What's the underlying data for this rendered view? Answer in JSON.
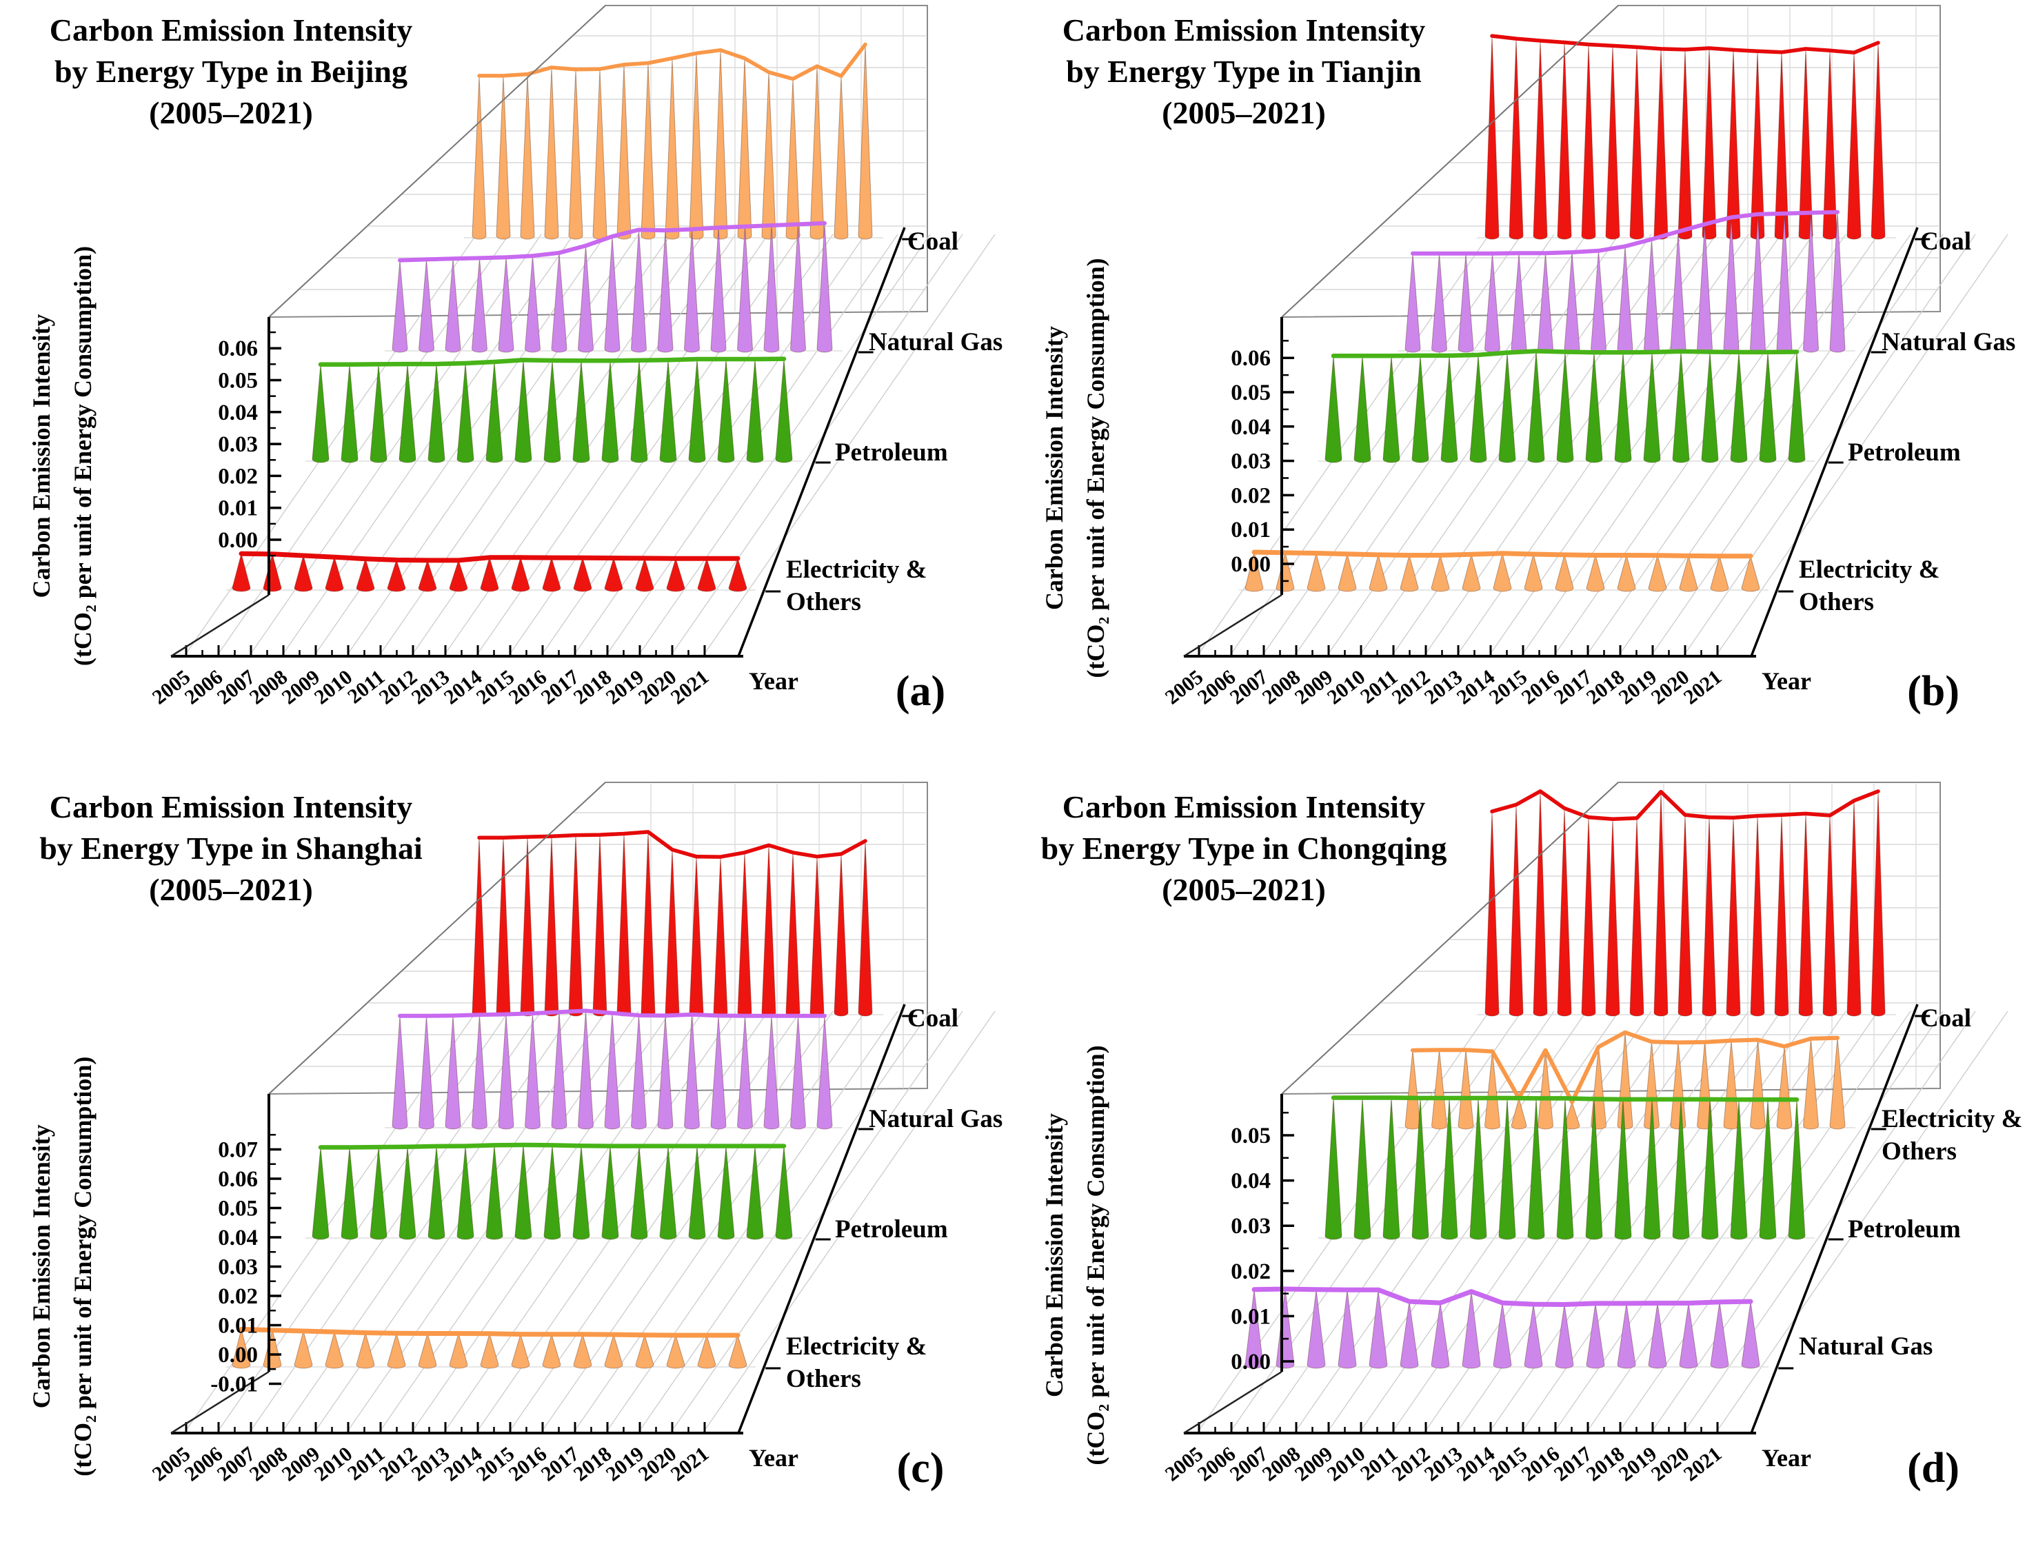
{
  "figure": {
    "description": "Carbon emission intensity by energy type, 3D waterfall cone charts, four municipalities, 2005-2021"
  },
  "chart_data": [
    {
      "type": "3d-waterfall-cone",
      "panel_label": "(a)",
      "city": "Beijing",
      "title_lines": [
        "Carbon Emission Intensity",
        "by Energy Type in Beijing",
        "(2005–2021)"
      ],
      "xlabel": "Year",
      "ylabel_lines": [
        "Carbon Emission Intensity",
        "(tCO₂ per unit of Energy Consumption)"
      ],
      "ylim": [
        0.0,
        0.06
      ],
      "x": [
        2005,
        2006,
        2007,
        2008,
        2009,
        2010,
        2011,
        2012,
        2013,
        2014,
        2015,
        2016,
        2017,
        2018,
        2019,
        2020,
        2021
      ],
      "series": [
        {
          "name": "Electricity & Others",
          "label_lines": [
            "Electricity &",
            "Others"
          ],
          "fill": "#ee1511",
          "line": "#e50a0a",
          "values": [
            0.019,
            0.0188,
            0.018,
            0.0172,
            0.0163,
            0.0157,
            0.0155,
            0.0155,
            0.017,
            0.017,
            0.0169,
            0.0168,
            0.0167,
            0.0166,
            0.0165,
            0.0165,
            0.0165
          ]
        },
        {
          "name": "Petroleum",
          "label_lines": [
            "Petroleum"
          ],
          "fill": "#3ea412",
          "line": "#47b317",
          "values": [
            0.0415,
            0.0415,
            0.0416,
            0.0417,
            0.0417,
            0.042,
            0.0426,
            0.0434,
            0.0432,
            0.0431,
            0.0431,
            0.0433,
            0.0434,
            0.0438,
            0.0438,
            0.0438,
            0.0439
          ]
        },
        {
          "name": "Natural Gas",
          "label_lines": [
            "Natural Gas"
          ],
          "fill": "#cd87ea",
          "line": "#c869f0",
          "values": [
            0.033,
            0.0333,
            0.0336,
            0.0338,
            0.0341,
            0.0346,
            0.0357,
            0.0383,
            0.0417,
            0.0441,
            0.0439,
            0.0443,
            0.0449,
            0.0453,
            0.0457,
            0.0461,
            0.0465
          ]
        },
        {
          "name": "Coal",
          "label_lines": [
            "Coal"
          ],
          "fill": "#fbac67",
          "line": "#f99849",
          "values": [
            0.0513,
            0.0513,
            0.0518,
            0.0539,
            0.0533,
            0.0534,
            0.0548,
            0.0553,
            0.0568,
            0.0584,
            0.0594,
            0.0568,
            0.0524,
            0.0503,
            0.0543,
            0.0512,
            0.0612
          ]
        }
      ]
    },
    {
      "type": "3d-waterfall-cone",
      "panel_label": "(b)",
      "city": "Tianjin",
      "title_lines": [
        "Carbon Emission Intensity",
        "by Energy Type in Tianjin",
        "(2005–2021)"
      ],
      "xlabel": "Year",
      "ylabel_lines": [
        "Carbon Emission Intensity",
        "(tCO₂ per unit of Energy Consumption)"
      ],
      "ylim": [
        0.0,
        0.06
      ],
      "x": [
        2005,
        2006,
        2007,
        2008,
        2009,
        2010,
        2011,
        2012,
        2013,
        2014,
        2015,
        2016,
        2017,
        2018,
        2019,
        2020,
        2021
      ],
      "series": [
        {
          "name": "Electricity & Others",
          "label_lines": [
            "Electricity &",
            "Others"
          ],
          "fill": "#fbac67",
          "line": "#f99849",
          "values": [
            0.0184,
            0.0181,
            0.0179,
            0.0175,
            0.0171,
            0.0169,
            0.0169,
            0.0173,
            0.0178,
            0.0174,
            0.0171,
            0.0169,
            0.0169,
            0.0168,
            0.0166,
            0.0165,
            0.0165
          ]
        },
        {
          "name": "Petroleum",
          "label_lines": [
            "Petroleum"
          ],
          "fill": "#3ea412",
          "line": "#47b317",
          "values": [
            0.042,
            0.042,
            0.042,
            0.0421,
            0.0421,
            0.0424,
            0.0433,
            0.0439,
            0.0436,
            0.0434,
            0.0434,
            0.0435,
            0.0438,
            0.0436,
            0.0435,
            0.0435,
            0.0436
          ]
        },
        {
          "name": "Natural Gas",
          "label_lines": [
            "Natural Gas"
          ],
          "fill": "#cd87ea",
          "line": "#c869f0",
          "values": [
            0.033,
            0.033,
            0.033,
            0.033,
            0.0331,
            0.0331,
            0.0334,
            0.0339,
            0.0354,
            0.0378,
            0.0404,
            0.0429,
            0.0452,
            0.0463,
            0.0465,
            0.0468,
            0.047
          ]
        },
        {
          "name": "Coal",
          "label_lines": [
            "Coal"
          ],
          "fill": "#ee1511",
          "line": "#e50a0a",
          "values": [
            0.0594,
            0.0586,
            0.058,
            0.0575,
            0.0569,
            0.0565,
            0.0561,
            0.0556,
            0.0554,
            0.0558,
            0.0553,
            0.0549,
            0.0546,
            0.0556,
            0.0551,
            0.0545,
            0.0574
          ]
        }
      ]
    },
    {
      "type": "3d-waterfall-cone",
      "panel_label": "(c)",
      "city": "Shanghai",
      "title_lines": [
        "Carbon Emission Intensity",
        "by Energy Type in Shanghai",
        "(2005–2021)"
      ],
      "xlabel": "Year",
      "ylabel_lines": [
        "Carbon Emission Intensity",
        "(tCO₂ per unit of Energy Consumption)"
      ],
      "ylim": [
        -0.01,
        0.07
      ],
      "x": [
        2005,
        2006,
        2007,
        2008,
        2009,
        2010,
        2011,
        2012,
        2013,
        2014,
        2015,
        2016,
        2017,
        2018,
        2019,
        2020,
        2021
      ],
      "series": [
        {
          "name": "Electricity & Others",
          "label_lines": [
            "Electricity &",
            "Others"
          ],
          "fill": "#fbac67",
          "line": "#f99849",
          "values": [
            0.0214,
            0.0209,
            0.0204,
            0.0199,
            0.0194,
            0.0191,
            0.019,
            0.019,
            0.0189,
            0.0186,
            0.0185,
            0.0185,
            0.0184,
            0.0181,
            0.018,
            0.018,
            0.018
          ]
        },
        {
          "name": "Petroleum",
          "label_lines": [
            "Petroleum"
          ],
          "fill": "#3ea412",
          "line": "#47b317",
          "values": [
            0.0424,
            0.0424,
            0.0425,
            0.0426,
            0.0429,
            0.043,
            0.0434,
            0.0435,
            0.0434,
            0.0431,
            0.043,
            0.043,
            0.043,
            0.043,
            0.043,
            0.043,
            0.043
          ]
        },
        {
          "name": "Natural Gas",
          "label_lines": [
            "Natural Gas"
          ],
          "fill": "#cd87ea",
          "line": "#c869f0",
          "values": [
            0.0444,
            0.0444,
            0.0445,
            0.0448,
            0.045,
            0.0454,
            0.0459,
            0.0464,
            0.0455,
            0.0446,
            0.0445,
            0.0449,
            0.0445,
            0.0444,
            0.0444,
            0.0444,
            0.0444
          ]
        },
        {
          "name": "Coal",
          "label_lines": [
            "Coal"
          ],
          "fill": "#ee1511",
          "line": "#e50a0a",
          "values": [
            0.061,
            0.061,
            0.0613,
            0.0615,
            0.0619,
            0.062,
            0.0624,
            0.063,
            0.0569,
            0.0545,
            0.0544,
            0.0559,
            0.0584,
            0.0559,
            0.0545,
            0.0554,
            0.0599
          ]
        }
      ]
    },
    {
      "type": "3d-waterfall-cone",
      "panel_label": "(d)",
      "city": "Chongqing",
      "title_lines": [
        "Carbon Emission Intensity",
        "by Energy Type in Chongqing",
        "(2005–2021)"
      ],
      "xlabel": "Year",
      "ylabel_lines": [
        "Carbon Emission Intensity",
        "(tCO₂ per unit of Energy Consumption)"
      ],
      "ylim": [
        0.0,
        0.05
      ],
      "x": [
        2005,
        2006,
        2007,
        2008,
        2009,
        2010,
        2011,
        2012,
        2013,
        2014,
        2015,
        2016,
        2017,
        2018,
        2019,
        2020,
        2021
      ],
      "series": [
        {
          "name": "Natural Gas",
          "label_lines": [
            "Natural Gas"
          ],
          "fill": "#cd87ea",
          "line": "#c869f0",
          "values": [
            0.0285,
            0.0287,
            0.0285,
            0.0284,
            0.0284,
            0.0241,
            0.0236,
            0.0278,
            0.0236,
            0.0231,
            0.023,
            0.0234,
            0.0234,
            0.0235,
            0.0235,
            0.0239,
            0.0241
          ]
        },
        {
          "name": "Petroleum",
          "label_lines": [
            "Petroleum"
          ],
          "fill": "#3ea412",
          "line": "#47b317",
          "values": [
            0.0425,
            0.0425,
            0.0425,
            0.0424,
            0.0424,
            0.0424,
            0.0424,
            0.0423,
            0.0423,
            0.0421,
            0.042,
            0.042,
            0.042,
            0.042,
            0.0419,
            0.0419,
            0.0419
          ]
        },
        {
          "name": "Electricity & Others",
          "label_lines": [
            "Electricity &",
            "Others"
          ],
          "fill": "#fbac67",
          "line": "#f99849",
          "values": [
            0.0199,
            0.02,
            0.02,
            0.0196,
            0.0076,
            0.0199,
            0.0066,
            0.0208,
            0.0245,
            0.0221,
            0.0219,
            0.022,
            0.0224,
            0.0226,
            0.0209,
            0.0229,
            0.0231
          ]
        },
        {
          "name": "Coal",
          "label_lines": [
            "Coal"
          ],
          "fill": "#ee1511",
          "line": "#e50a0a",
          "values": [
            0.0454,
            0.0469,
            0.0499,
            0.0461,
            0.0441,
            0.0437,
            0.0439,
            0.0498,
            0.0446,
            0.0441,
            0.044,
            0.0444,
            0.0446,
            0.0449,
            0.0445,
            0.0478,
            0.0499
          ]
        }
      ]
    }
  ]
}
